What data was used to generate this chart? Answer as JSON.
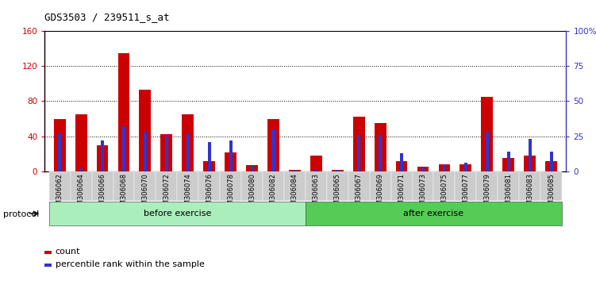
{
  "title": "GDS3503 / 239511_s_at",
  "samples": [
    "GSM306062",
    "GSM306064",
    "GSM306066",
    "GSM306068",
    "GSM306070",
    "GSM306072",
    "GSM306074",
    "GSM306076",
    "GSM306078",
    "GSM306080",
    "GSM306082",
    "GSM306084",
    "GSM306063",
    "GSM306065",
    "GSM306067",
    "GSM306069",
    "GSM306071",
    "GSM306073",
    "GSM306075",
    "GSM306077",
    "GSM306079",
    "GSM306081",
    "GSM306083",
    "GSM306085"
  ],
  "count_values": [
    60,
    65,
    30,
    135,
    93,
    42,
    65,
    12,
    22,
    7,
    60,
    2,
    18,
    2,
    62,
    55,
    12,
    5,
    8,
    8,
    85,
    15,
    18,
    12
  ],
  "percentile_values": [
    27,
    2,
    22,
    32,
    28,
    26,
    27,
    21,
    22,
    4,
    30,
    1,
    1,
    1,
    26,
    26,
    13,
    3,
    5,
    6,
    28,
    14,
    23,
    14
  ],
  "before_exercise_count": 12,
  "after_exercise_count": 12,
  "ylim_left": [
    0,
    160
  ],
  "ylim_right": [
    0,
    100
  ],
  "left_ticks": [
    0,
    40,
    80,
    120,
    160
  ],
  "right_ticks": [
    0,
    25,
    50,
    75,
    100
  ],
  "right_tick_labels": [
    "0",
    "25",
    "50",
    "75",
    "100%"
  ],
  "color_count": "#cc0000",
  "color_percentile": "#3333cc",
  "before_color": "#aaeebb",
  "after_color": "#55cc55",
  "protocol_label": "protocol",
  "before_label": "before exercise",
  "after_label": "after exercise",
  "legend_count": "count",
  "legend_percentile": "percentile rank within the sample",
  "bg_color": "#ffffff",
  "plot_bg": "#ffffff",
  "xtick_bg": "#cccccc"
}
